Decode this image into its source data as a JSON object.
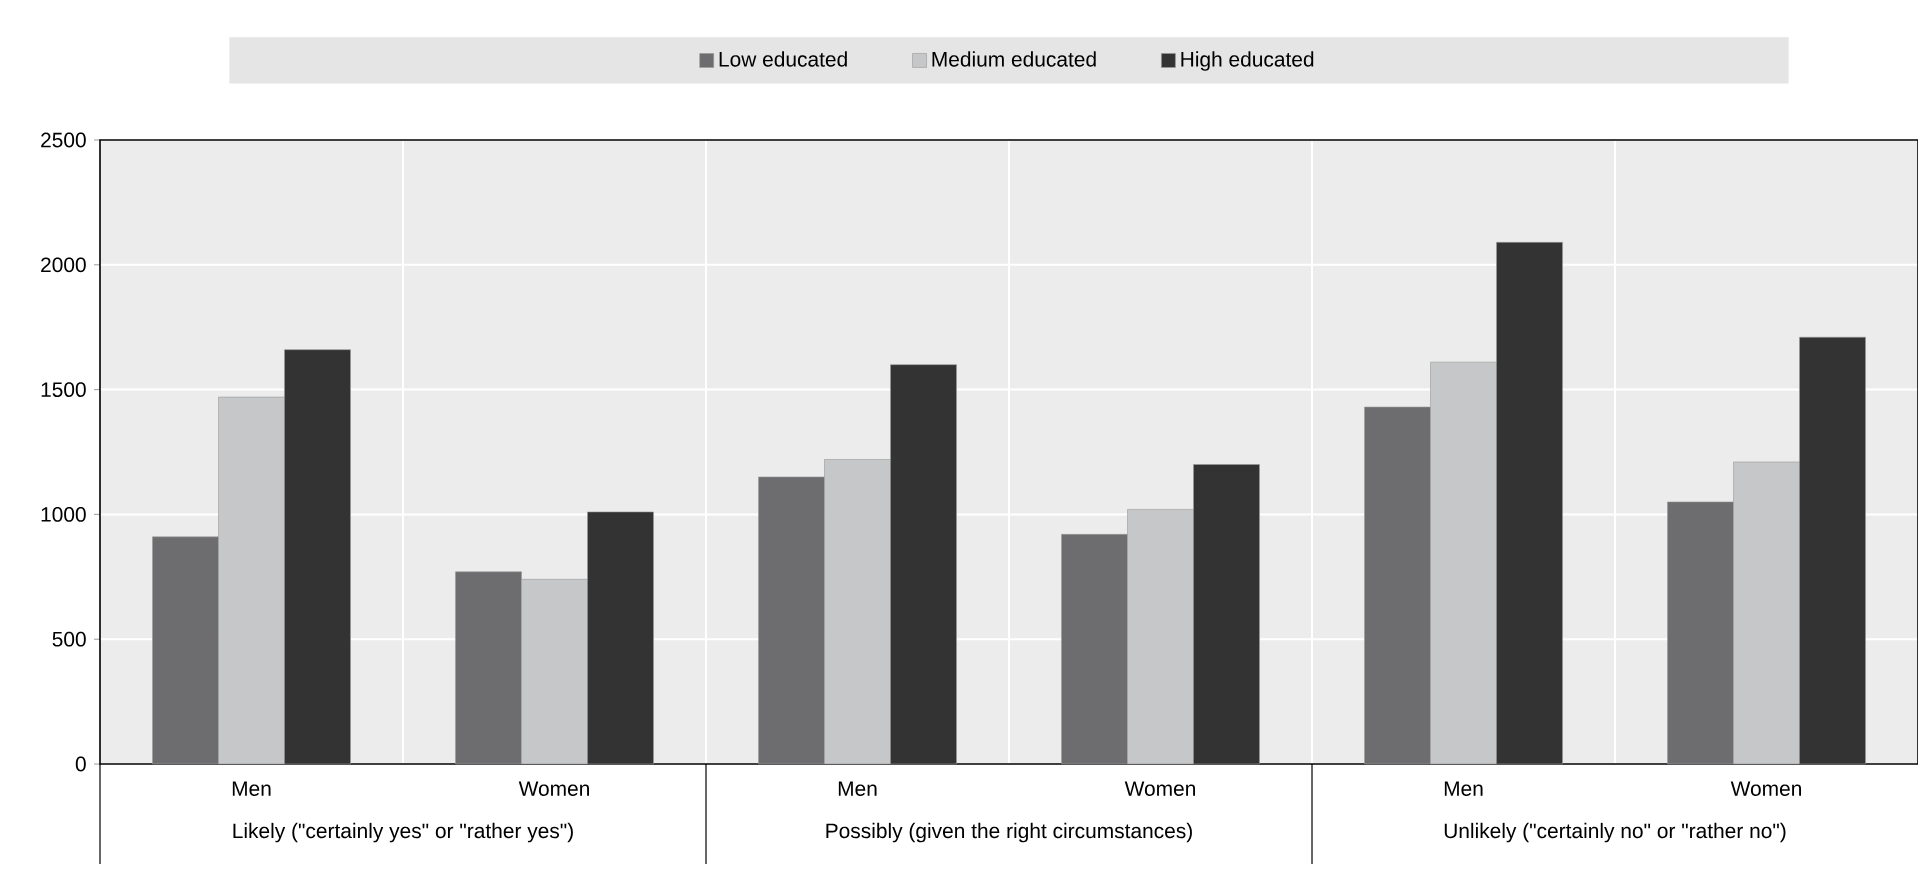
{
  "chart_data": {
    "type": "bar",
    "categories": [
      "Men",
      "Women",
      "Men",
      "Women",
      "Men",
      "Women"
    ],
    "series": [
      {
        "name": "Low educated",
        "color": "#6d6d6f",
        "values": [
          910,
          770,
          1150,
          920,
          1430,
          1050
        ]
      },
      {
        "name": "Medium educated",
        "color": "#c6c7c9",
        "values": [
          1470,
          740,
          1220,
          1020,
          1610,
          1210
        ]
      },
      {
        "name": "High educated",
        "color": "#333333",
        "values": [
          1660,
          1010,
          1600,
          1200,
          2090,
          1710
        ]
      }
    ],
    "annotations": [
      "Likely (\"certainly yes\" or \"rather yes\")",
      "Possibly (given the right circumstances)",
      "Unlikely (\"certainly no\" or \"rather no\")"
    ],
    "ylim": [
      0,
      2500
    ],
    "yticks": [
      0,
      500,
      1000,
      1500,
      2000,
      2500
    ],
    "grid": true,
    "legend": "top"
  }
}
